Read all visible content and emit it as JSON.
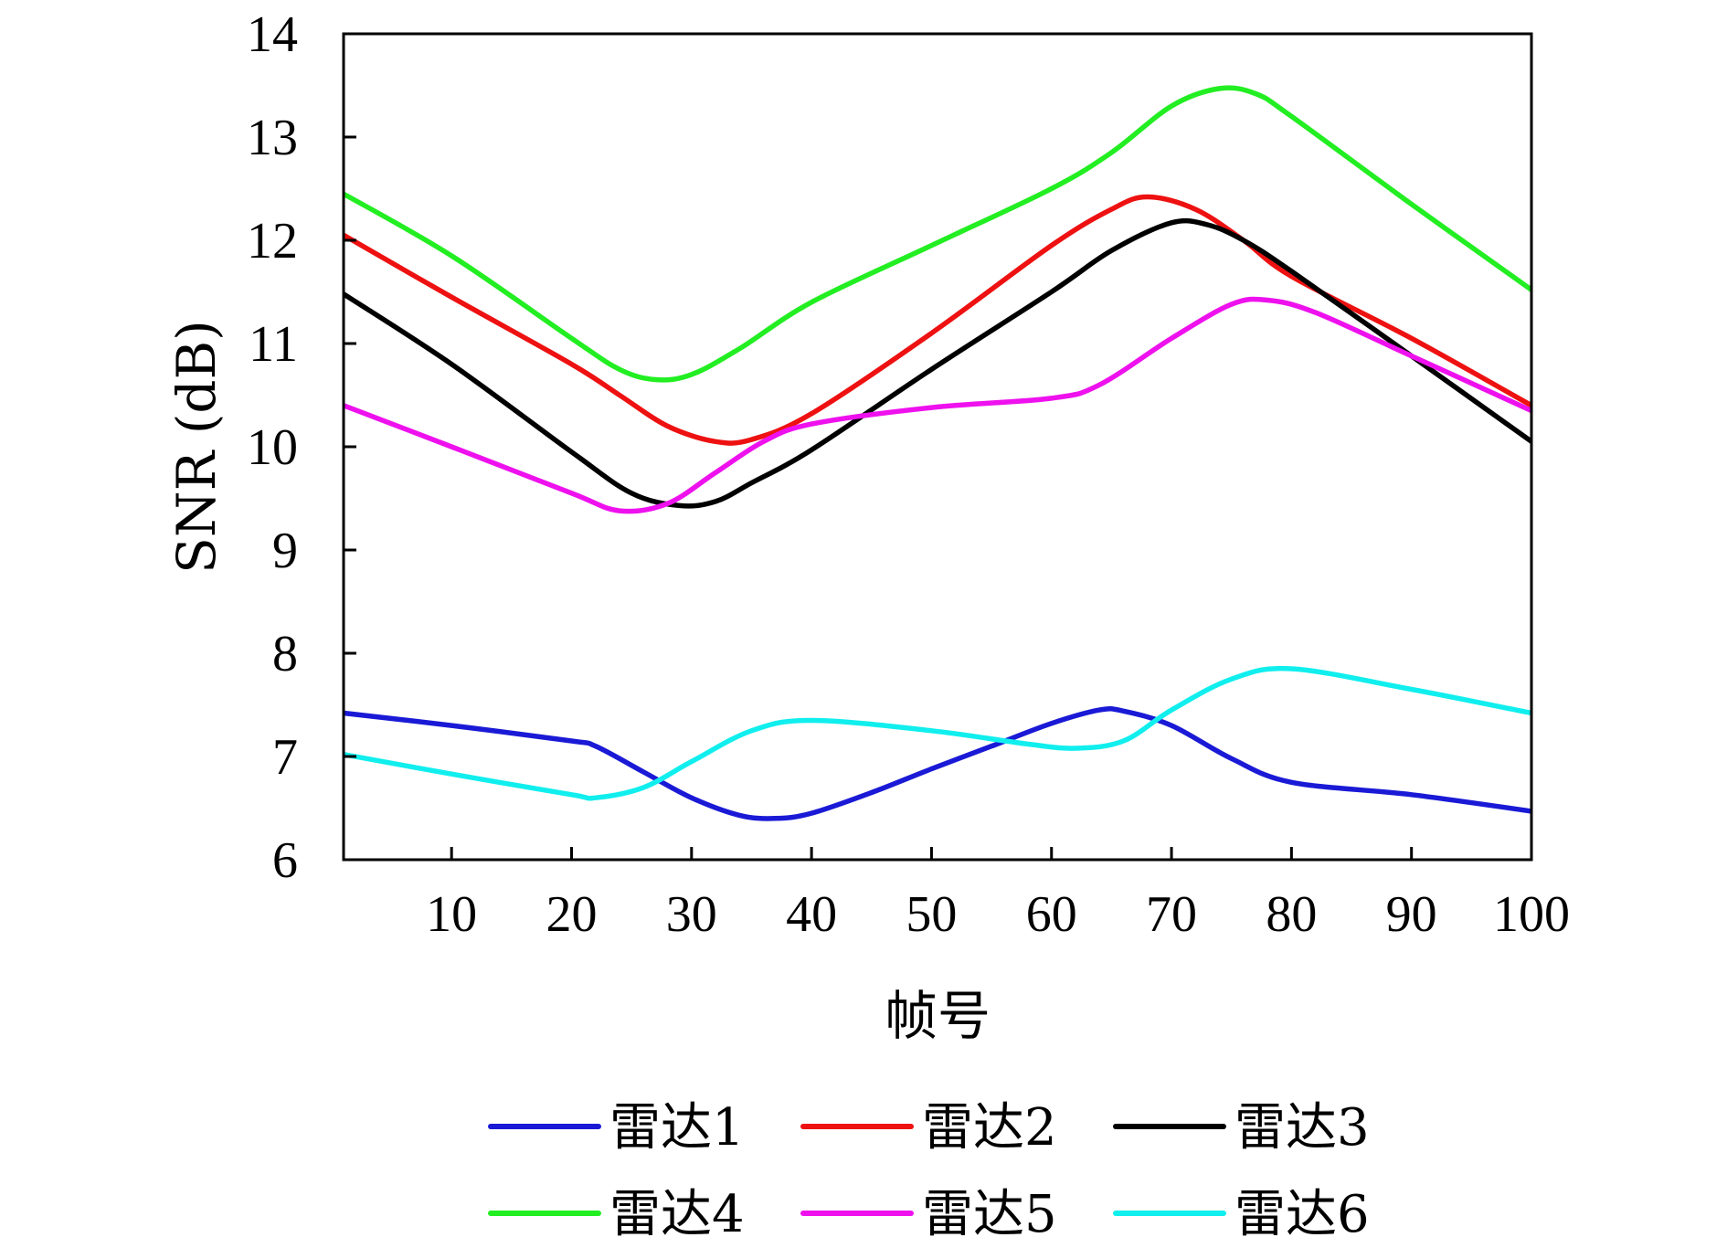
{
  "chart_data": {
    "type": "line",
    "title": "",
    "xlabel": "帧号",
    "ylabel": "SNR (dB)",
    "xlim": [
      1,
      100
    ],
    "ylim": [
      6,
      14
    ],
    "xticks": [
      10,
      20,
      30,
      40,
      50,
      60,
      70,
      80,
      90,
      100
    ],
    "yticks": [
      6,
      7,
      8,
      9,
      10,
      11,
      12,
      13,
      14
    ],
    "grid": false,
    "legend_position": "bottom",
    "series": [
      {
        "name": "雷达1",
        "color": "#1a1ad6",
        "points": [
          [
            1,
            7.42
          ],
          [
            10,
            7.3
          ],
          [
            20,
            7.15
          ],
          [
            22,
            7.1
          ],
          [
            26,
            6.85
          ],
          [
            30,
            6.6
          ],
          [
            34,
            6.43
          ],
          [
            37,
            6.4
          ],
          [
            40,
            6.45
          ],
          [
            45,
            6.65
          ],
          [
            50,
            6.88
          ],
          [
            55,
            7.1
          ],
          [
            60,
            7.32
          ],
          [
            64,
            7.45
          ],
          [
            66,
            7.44
          ],
          [
            70,
            7.3
          ],
          [
            75,
            6.98
          ],
          [
            80,
            6.75
          ],
          [
            90,
            6.63
          ],
          [
            100,
            6.47
          ]
        ]
      },
      {
        "name": "雷达2",
        "color": "#ee1111",
        "points": [
          [
            1,
            12.05
          ],
          [
            10,
            11.45
          ],
          [
            20,
            10.8
          ],
          [
            24,
            10.5
          ],
          [
            28,
            10.2
          ],
          [
            32,
            10.05
          ],
          [
            35,
            10.07
          ],
          [
            40,
            10.32
          ],
          [
            50,
            11.1
          ],
          [
            60,
            11.95
          ],
          [
            65,
            12.3
          ],
          [
            68,
            12.42
          ],
          [
            72,
            12.3
          ],
          [
            76,
            12.0
          ],
          [
            80,
            11.65
          ],
          [
            90,
            11.05
          ],
          [
            100,
            10.4
          ]
        ]
      },
      {
        "name": "雷达3",
        "color": "#000000",
        "points": [
          [
            1,
            11.48
          ],
          [
            10,
            10.8
          ],
          [
            20,
            9.95
          ],
          [
            25,
            9.55
          ],
          [
            29,
            9.43
          ],
          [
            32,
            9.47
          ],
          [
            35,
            9.65
          ],
          [
            40,
            9.97
          ],
          [
            50,
            10.75
          ],
          [
            60,
            11.5
          ],
          [
            65,
            11.9
          ],
          [
            70,
            12.17
          ],
          [
            73,
            12.15
          ],
          [
            76,
            12.0
          ],
          [
            80,
            11.7
          ],
          [
            90,
            10.88
          ],
          [
            100,
            10.05
          ]
        ]
      },
      {
        "name": "雷达4",
        "color": "#22ee22",
        "points": [
          [
            1,
            12.45
          ],
          [
            10,
            11.85
          ],
          [
            20,
            11.05
          ],
          [
            24,
            10.75
          ],
          [
            27,
            10.65
          ],
          [
            30,
            10.7
          ],
          [
            34,
            10.95
          ],
          [
            40,
            11.4
          ],
          [
            50,
            11.95
          ],
          [
            60,
            12.5
          ],
          [
            65,
            12.85
          ],
          [
            70,
            13.3
          ],
          [
            74,
            13.47
          ],
          [
            77,
            13.42
          ],
          [
            80,
            13.2
          ],
          [
            90,
            12.35
          ],
          [
            100,
            11.52
          ]
        ]
      },
      {
        "name": "雷达5",
        "color": "#ee11ee",
        "points": [
          [
            1,
            10.4
          ],
          [
            10,
            10.0
          ],
          [
            20,
            9.55
          ],
          [
            24,
            9.38
          ],
          [
            28,
            9.45
          ],
          [
            32,
            9.75
          ],
          [
            36,
            10.05
          ],
          [
            40,
            10.22
          ],
          [
            50,
            10.38
          ],
          [
            60,
            10.47
          ],
          [
            64,
            10.6
          ],
          [
            70,
            11.05
          ],
          [
            75,
            11.38
          ],
          [
            78,
            11.42
          ],
          [
            82,
            11.3
          ],
          [
            90,
            10.88
          ],
          [
            100,
            10.35
          ]
        ]
      },
      {
        "name": "雷达6",
        "color": "#11eeee",
        "points": [
          [
            1,
            7.02
          ],
          [
            10,
            6.83
          ],
          [
            20,
            6.63
          ],
          [
            22,
            6.6
          ],
          [
            26,
            6.7
          ],
          [
            30,
            6.95
          ],
          [
            35,
            7.25
          ],
          [
            40,
            7.35
          ],
          [
            50,
            7.25
          ],
          [
            58,
            7.12
          ],
          [
            62,
            7.08
          ],
          [
            66,
            7.15
          ],
          [
            70,
            7.45
          ],
          [
            75,
            7.75
          ],
          [
            80,
            7.85
          ],
          [
            90,
            7.65
          ],
          [
            100,
            7.42
          ]
        ]
      }
    ]
  }
}
